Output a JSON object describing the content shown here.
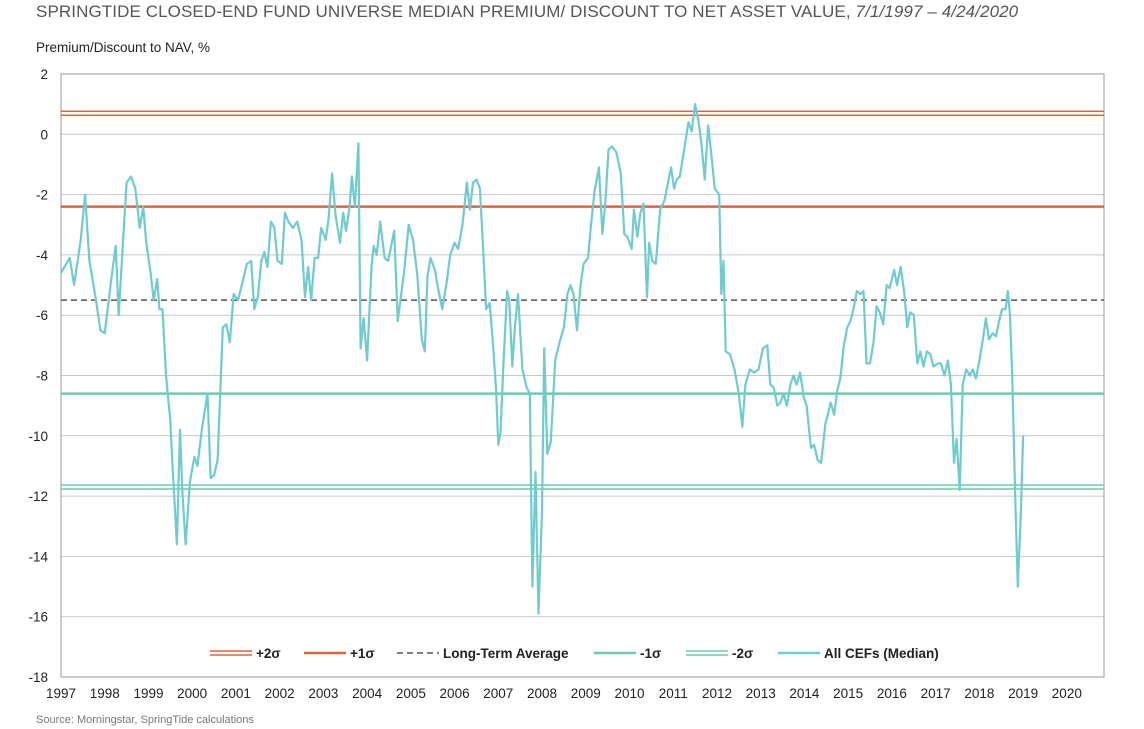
{
  "header": {
    "title_main": "SPRINGTIDE CLOSED-END FUND UNIVERSE MEDIAN PREMIUM/ DISCOUNT TO NET ASSET VALUE,",
    "title_dates": "7/1/1997 – 4/24/2020",
    "source": "Source: Morningstar, SpringTide calculations"
  },
  "chart_data": {
    "type": "line",
    "title": "SPRINGTIDE CLOSED-END FUND UNIVERSE MEDIAN PREMIUM/ DISCOUNT TO NET ASSET VALUE, 7/1/1997 – 4/24/2020",
    "ylabel": "Premium/Discount to NAV, %",
    "xlabel": "",
    "ylim": [
      -18,
      2
    ],
    "yticks": [
      2,
      0,
      -2,
      -4,
      -6,
      -8,
      -10,
      -12,
      -14,
      -16,
      -18
    ],
    "xlim": [
      1997.0,
      2020.85
    ],
    "xticks": [
      "1997",
      "1998",
      "1999",
      "2000",
      "2001",
      "2002",
      "2003",
      "2004",
      "2005",
      "2006",
      "2007",
      "2008",
      "2009",
      "2010",
      "2011",
      "2012",
      "2013",
      "2014",
      "2015",
      "2016",
      "2017",
      "2018",
      "2019",
      "2020"
    ],
    "grid": "horizontal",
    "legend_position": "bottom",
    "colors": {
      "plus2": "#e0623a",
      "plus1": "#e0623a",
      "avg": "#555555",
      "minus1": "#6fc9ae",
      "minus2": "#6fc9ae",
      "median": "#6ecbcf"
    },
    "reference_lines": [
      {
        "name": "+2σ",
        "value": 0.7,
        "style": "double"
      },
      {
        "name": "+1σ",
        "value": -2.4,
        "style": "solid"
      },
      {
        "name": "Long-Term Average",
        "value": -5.5,
        "style": "dashed"
      },
      {
        "name": "-1σ",
        "value": -8.6,
        "style": "solid"
      },
      {
        "name": "-2σ",
        "value": -11.7,
        "style": "double"
      }
    ],
    "series": [
      {
        "name": "All CEFs (Median)",
        "points": [
          [
            1997.0,
            -4.6
          ],
          [
            1997.2,
            -4.1
          ],
          [
            1997.3,
            -5.0
          ],
          [
            1997.45,
            -3.5
          ],
          [
            1997.55,
            -2.0
          ],
          [
            1997.65,
            -4.2
          ],
          [
            1997.8,
            -5.5
          ],
          [
            1997.9,
            -6.5
          ],
          [
            1998.0,
            -6.6
          ],
          [
            1998.15,
            -4.8
          ],
          [
            1998.25,
            -3.7
          ],
          [
            1998.32,
            -6.0
          ],
          [
            1998.42,
            -3.5
          ],
          [
            1998.5,
            -1.6
          ],
          [
            1998.6,
            -1.4
          ],
          [
            1998.7,
            -1.8
          ],
          [
            1998.8,
            -3.1
          ],
          [
            1998.88,
            -2.4
          ],
          [
            1998.95,
            -3.6
          ],
          [
            1999.05,
            -4.6
          ],
          [
            1999.12,
            -5.5
          ],
          [
            1999.2,
            -4.8
          ],
          [
            1999.25,
            -5.8
          ],
          [
            1999.32,
            -5.8
          ],
          [
            1999.4,
            -8.0
          ],
          [
            1999.5,
            -9.5
          ],
          [
            1999.55,
            -11.0
          ],
          [
            1999.65,
            -13.6
          ],
          [
            1999.72,
            -9.8
          ],
          [
            1999.78,
            -12.0
          ],
          [
            1999.85,
            -13.6
          ],
          [
            1999.95,
            -11.5
          ],
          [
            2000.05,
            -10.7
          ],
          [
            2000.12,
            -11.0
          ],
          [
            2000.22,
            -9.8
          ],
          [
            2000.35,
            -8.6
          ],
          [
            2000.42,
            -11.4
          ],
          [
            2000.5,
            -11.3
          ],
          [
            2000.58,
            -10.8
          ],
          [
            2000.7,
            -6.4
          ],
          [
            2000.78,
            -6.3
          ],
          [
            2000.86,
            -6.9
          ],
          [
            2000.95,
            -5.3
          ],
          [
            2001.05,
            -5.5
          ],
          [
            2001.15,
            -4.9
          ],
          [
            2001.25,
            -4.3
          ],
          [
            2001.35,
            -4.2
          ],
          [
            2001.42,
            -5.8
          ],
          [
            2001.5,
            -5.4
          ],
          [
            2001.58,
            -4.2
          ],
          [
            2001.65,
            -3.9
          ],
          [
            2001.72,
            -4.4
          ],
          [
            2001.8,
            -2.9
          ],
          [
            2001.88,
            -3.1
          ],
          [
            2001.95,
            -4.2
          ],
          [
            2002.05,
            -4.3
          ],
          [
            2002.12,
            -2.6
          ],
          [
            2002.2,
            -2.9
          ],
          [
            2002.3,
            -3.1
          ],
          [
            2002.4,
            -2.9
          ],
          [
            2002.5,
            -3.5
          ],
          [
            2002.58,
            -5.4
          ],
          [
            2002.65,
            -4.4
          ],
          [
            2002.72,
            -5.5
          ],
          [
            2002.8,
            -4.1
          ],
          [
            2002.88,
            -4.1
          ],
          [
            2002.95,
            -3.1
          ],
          [
            2003.05,
            -3.5
          ],
          [
            2003.12,
            -2.8
          ],
          [
            2003.2,
            -1.3
          ],
          [
            2003.28,
            -2.7
          ],
          [
            2003.38,
            -3.6
          ],
          [
            2003.45,
            -2.6
          ],
          [
            2003.52,
            -3.2
          ],
          [
            2003.6,
            -2.4
          ],
          [
            2003.65,
            -1.4
          ],
          [
            2003.72,
            -2.4
          ],
          [
            2003.8,
            -0.3
          ],
          [
            2003.85,
            -7.1
          ],
          [
            2003.92,
            -6.1
          ],
          [
            2004.0,
            -7.5
          ],
          [
            2004.1,
            -4.4
          ],
          [
            2004.15,
            -3.7
          ],
          [
            2004.22,
            -4.0
          ],
          [
            2004.3,
            -2.9
          ],
          [
            2004.4,
            -4.1
          ],
          [
            2004.48,
            -4.2
          ],
          [
            2004.55,
            -3.7
          ],
          [
            2004.62,
            -3.2
          ],
          [
            2004.7,
            -6.2
          ],
          [
            2004.78,
            -5.3
          ],
          [
            2004.85,
            -4.5
          ],
          [
            2004.95,
            -3.0
          ],
          [
            2005.05,
            -3.5
          ],
          [
            2005.15,
            -4.7
          ],
          [
            2005.25,
            -6.8
          ],
          [
            2005.32,
            -7.2
          ],
          [
            2005.38,
            -4.7
          ],
          [
            2005.45,
            -4.1
          ],
          [
            2005.55,
            -4.5
          ],
          [
            2005.62,
            -5.1
          ],
          [
            2005.72,
            -5.8
          ],
          [
            2005.82,
            -4.9
          ],
          [
            2005.9,
            -4.0
          ],
          [
            2006.0,
            -3.6
          ],
          [
            2006.08,
            -3.8
          ],
          [
            2006.18,
            -3.0
          ],
          [
            2006.28,
            -1.6
          ],
          [
            2006.35,
            -2.5
          ],
          [
            2006.42,
            -1.6
          ],
          [
            2006.5,
            -1.5
          ],
          [
            2006.58,
            -1.8
          ],
          [
            2006.65,
            -3.7
          ],
          [
            2006.72,
            -5.8
          ],
          [
            2006.8,
            -5.6
          ],
          [
            2006.88,
            -7.0
          ],
          [
            2006.95,
            -8.5
          ],
          [
            2007.0,
            -10.3
          ],
          [
            2007.05,
            -9.9
          ],
          [
            2007.12,
            -7.5
          ],
          [
            2007.2,
            -5.2
          ],
          [
            2007.25,
            -5.5
          ],
          [
            2007.32,
            -7.7
          ],
          [
            2007.38,
            -6.4
          ],
          [
            2007.45,
            -5.3
          ],
          [
            2007.55,
            -7.8
          ],
          [
            2007.65,
            -8.4
          ],
          [
            2007.72,
            -8.6
          ],
          [
            2007.78,
            -15.0
          ],
          [
            2007.85,
            -11.2
          ],
          [
            2007.92,
            -15.9
          ],
          [
            2008.0,
            -12.5
          ],
          [
            2008.05,
            -7.1
          ],
          [
            2008.12,
            -10.6
          ],
          [
            2008.2,
            -10.2
          ],
          [
            2008.3,
            -7.5
          ],
          [
            2008.4,
            -6.9
          ],
          [
            2008.5,
            -6.4
          ],
          [
            2008.58,
            -5.3
          ],
          [
            2008.65,
            -5.0
          ],
          [
            2008.72,
            -5.3
          ],
          [
            2008.8,
            -6.5
          ],
          [
            2008.88,
            -5.0
          ],
          [
            2008.95,
            -4.3
          ],
          [
            2009.05,
            -4.1
          ],
          [
            2009.12,
            -3.0
          ],
          [
            2009.2,
            -1.9
          ],
          [
            2009.3,
            -1.1
          ],
          [
            2009.38,
            -3.3
          ],
          [
            2009.45,
            -2.2
          ],
          [
            2009.52,
            -0.5
          ],
          [
            2009.6,
            -0.4
          ],
          [
            2009.7,
            -0.6
          ],
          [
            2009.8,
            -1.3
          ],
          [
            2009.88,
            -3.3
          ],
          [
            2009.95,
            -3.4
          ],
          [
            2010.05,
            -3.8
          ],
          [
            2010.1,
            -2.5
          ],
          [
            2010.18,
            -3.4
          ],
          [
            2010.25,
            -2.6
          ],
          [
            2010.32,
            -2.3
          ],
          [
            2010.4,
            -5.4
          ],
          [
            2010.45,
            -3.6
          ],
          [
            2010.52,
            -4.2
          ],
          [
            2010.6,
            -4.3
          ],
          [
            2010.7,
            -2.5
          ],
          [
            2010.8,
            -2.2
          ],
          [
            2010.88,
            -1.6
          ],
          [
            2010.95,
            -1.1
          ],
          [
            2011.02,
            -1.8
          ],
          [
            2011.08,
            -1.5
          ],
          [
            2011.15,
            -1.4
          ],
          [
            2011.25,
            -0.5
          ],
          [
            2011.35,
            0.4
          ],
          [
            2011.42,
            0.1
          ],
          [
            2011.5,
            1.0
          ],
          [
            2011.58,
            0.4
          ],
          [
            2011.65,
            -0.4
          ],
          [
            2011.72,
            -1.5
          ],
          [
            2011.8,
            0.3
          ],
          [
            2011.88,
            -0.8
          ],
          [
            2011.95,
            -1.8
          ],
          [
            2012.05,
            -2.0
          ],
          [
            2012.1,
            -5.3
          ],
          [
            2012.15,
            -4.2
          ],
          [
            2012.2,
            -7.2
          ],
          [
            2012.3,
            -7.3
          ],
          [
            2012.4,
            -7.8
          ],
          [
            2012.5,
            -8.6
          ],
          [
            2012.58,
            -9.7
          ],
          [
            2012.65,
            -8.3
          ],
          [
            2012.75,
            -7.8
          ],
          [
            2012.85,
            -7.9
          ],
          [
            2012.95,
            -7.8
          ],
          [
            2013.05,
            -7.1
          ],
          [
            2013.15,
            -7.0
          ],
          [
            2013.22,
            -8.3
          ],
          [
            2013.3,
            -8.4
          ],
          [
            2013.38,
            -9.0
          ],
          [
            2013.45,
            -8.9
          ],
          [
            2013.52,
            -8.6
          ],
          [
            2013.6,
            -9.0
          ],
          [
            2013.68,
            -8.3
          ],
          [
            2013.75,
            -8.0
          ],
          [
            2013.82,
            -8.3
          ],
          [
            2013.9,
            -7.9
          ],
          [
            2013.98,
            -8.7
          ],
          [
            2014.05,
            -9.0
          ],
          [
            2014.15,
            -10.4
          ],
          [
            2014.22,
            -10.3
          ],
          [
            2014.3,
            -10.8
          ],
          [
            2014.38,
            -10.9
          ],
          [
            2014.48,
            -9.6
          ],
          [
            2014.55,
            -9.2
          ],
          [
            2014.6,
            -8.9
          ],
          [
            2014.68,
            -9.3
          ],
          [
            2014.75,
            -8.5
          ],
          [
            2014.82,
            -8.1
          ],
          [
            2014.9,
            -7.0
          ],
          [
            2014.98,
            -6.4
          ],
          [
            2015.05,
            -6.2
          ],
          [
            2015.12,
            -5.8
          ],
          [
            2015.2,
            -5.2
          ],
          [
            2015.28,
            -5.3
          ],
          [
            2015.35,
            -5.2
          ],
          [
            2015.42,
            -7.6
          ],
          [
            2015.5,
            -7.6
          ],
          [
            2015.58,
            -6.9
          ],
          [
            2015.65,
            -5.7
          ],
          [
            2015.72,
            -5.9
          ],
          [
            2015.8,
            -6.3
          ],
          [
            2015.88,
            -5.0
          ],
          [
            2015.95,
            -5.1
          ],
          [
            2016.05,
            -4.5
          ],
          [
            2016.12,
            -5.0
          ],
          [
            2016.2,
            -4.4
          ],
          [
            2016.28,
            -5.2
          ],
          [
            2016.35,
            -6.4
          ],
          [
            2016.42,
            -5.9
          ],
          [
            2016.5,
            -6.0
          ],
          [
            2016.58,
            -7.6
          ],
          [
            2016.65,
            -7.2
          ],
          [
            2016.72,
            -7.7
          ],
          [
            2016.8,
            -7.2
          ],
          [
            2016.88,
            -7.3
          ],
          [
            2016.95,
            -7.7
          ],
          [
            2017.05,
            -7.6
          ],
          [
            2017.12,
            -7.6
          ],
          [
            2017.2,
            -8.0
          ],
          [
            2017.28,
            -7.5
          ],
          [
            2017.35,
            -8.3
          ],
          [
            2017.42,
            -10.9
          ],
          [
            2017.48,
            -10.1
          ],
          [
            2017.55,
            -11.8
          ],
          [
            2017.62,
            -8.3
          ],
          [
            2017.7,
            -7.8
          ],
          [
            2017.78,
            -8.0
          ],
          [
            2017.85,
            -7.8
          ],
          [
            2017.92,
            -8.1
          ],
          [
            2018.0,
            -7.5
          ],
          [
            2018.08,
            -6.8
          ],
          [
            2018.15,
            -6.1
          ],
          [
            2018.22,
            -6.8
          ],
          [
            2018.3,
            -6.6
          ],
          [
            2018.38,
            -6.7
          ],
          [
            2018.45,
            -6.2
          ],
          [
            2018.52,
            -5.8
          ],
          [
            2018.6,
            -5.8
          ],
          [
            2018.65,
            -5.2
          ],
          [
            2018.7,
            -6.0
          ],
          [
            2018.75,
            -8.0
          ],
          [
            2018.82,
            -12.0
          ],
          [
            2018.88,
            -15.0
          ],
          [
            2018.95,
            -12.5
          ],
          [
            2019.0,
            -10.0
          ]
        ]
      }
    ]
  },
  "legend": {
    "plus2": "+2σ",
    "plus1": "+1σ",
    "avg": "Long-Term Average",
    "minus1": "-1σ",
    "minus2": "-2σ",
    "median": "All CEFs (Median)"
  }
}
